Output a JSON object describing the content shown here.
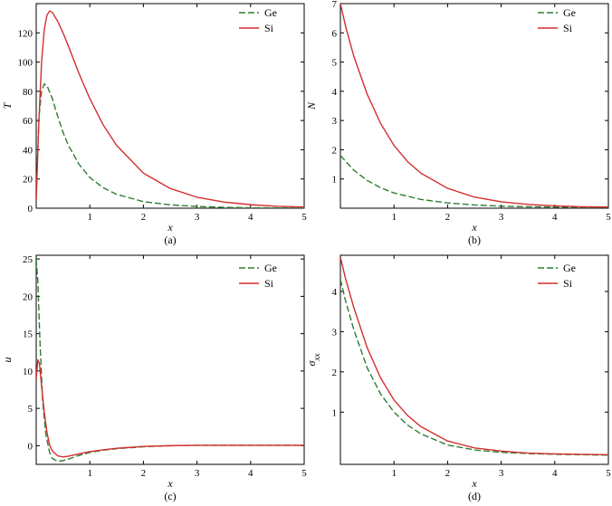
{
  "colors": {
    "Ge": "#2e7d32",
    "Si": "#d32f2f",
    "axis": "#000000"
  },
  "chart_data": [
    {
      "type": "line",
      "panel_label": "(a)",
      "xlabel": "x",
      "ylabel": "T",
      "xlim": [
        0,
        5
      ],
      "ylim": [
        0,
        140
      ],
      "xticks": [
        1,
        2,
        3,
        4,
        5
      ],
      "yticks": [
        0,
        20,
        40,
        60,
        80,
        100,
        120
      ],
      "grid": false,
      "legend_position": "top-right",
      "series": [
        {
          "name": "Ge",
          "style": "dashed",
          "x": [
            0,
            0.05,
            0.1,
            0.15,
            0.2,
            0.3,
            0.4,
            0.5,
            0.6,
            0.8,
            1.0,
            1.25,
            1.5,
            2.0,
            2.5,
            3.0,
            3.5,
            4.0,
            4.5,
            5.0
          ],
          "y": [
            8,
            62,
            80,
            85,
            84,
            75,
            63,
            52,
            43,
            30,
            21,
            14,
            9.5,
            4.5,
            2.3,
            1.2,
            0.6,
            0.3,
            0.2,
            0.1
          ]
        },
        {
          "name": "Si",
          "style": "solid",
          "x": [
            0,
            0.05,
            0.1,
            0.15,
            0.2,
            0.25,
            0.3,
            0.4,
            0.5,
            0.6,
            0.8,
            1.0,
            1.25,
            1.5,
            2.0,
            2.5,
            3.0,
            3.5,
            4.0,
            4.5,
            5.0
          ],
          "y": [
            5,
            60,
            100,
            122,
            132,
            135,
            134,
            128,
            120,
            111,
            92,
            75,
            57,
            43,
            24,
            13.5,
            7.5,
            4.2,
            2.4,
            1.3,
            0.8
          ]
        }
      ]
    },
    {
      "type": "line",
      "panel_label": "(b)",
      "xlabel": "x",
      "ylabel": "N",
      "xlim": [
        0,
        5
      ],
      "ylim": [
        0,
        7
      ],
      "xticks": [
        1,
        2,
        3,
        4,
        5
      ],
      "yticks": [
        1,
        2,
        3,
        4,
        5,
        6,
        7
      ],
      "grid": false,
      "legend_position": "top-right",
      "series": [
        {
          "name": "Ge",
          "style": "dashed",
          "x": [
            0,
            0.1,
            0.25,
            0.5,
            0.75,
            1.0,
            1.5,
            2.0,
            2.5,
            3.0,
            3.5,
            4.0,
            4.5,
            5.0
          ],
          "y": [
            1.8,
            1.6,
            1.3,
            0.95,
            0.7,
            0.52,
            0.3,
            0.18,
            0.11,
            0.07,
            0.05,
            0.04,
            0.03,
            0.03
          ]
        },
        {
          "name": "Si",
          "style": "solid",
          "x": [
            0,
            0.1,
            0.25,
            0.5,
            0.75,
            1.0,
            1.25,
            1.5,
            2.0,
            2.5,
            3.0,
            3.5,
            4.0,
            4.5,
            5.0
          ],
          "y": [
            7.0,
            6.2,
            5.2,
            3.9,
            2.9,
            2.15,
            1.6,
            1.2,
            0.68,
            0.38,
            0.22,
            0.13,
            0.08,
            0.05,
            0.04
          ]
        }
      ]
    },
    {
      "type": "line",
      "panel_label": "(c)",
      "xlabel": "x",
      "ylabel": "u",
      "xlim": [
        0,
        5
      ],
      "ylim": [
        -2.5,
        25.5
      ],
      "xticks": [
        1,
        2,
        3,
        4,
        5
      ],
      "yticks": [
        0,
        5,
        10,
        15,
        20,
        25
      ],
      "grid": false,
      "legend_position": "top-right",
      "series": [
        {
          "name": "Ge",
          "style": "dashed",
          "x": [
            0,
            0.03,
            0.07,
            0.12,
            0.18,
            0.25,
            0.3,
            0.4,
            0.5,
            0.6,
            0.8,
            1.0,
            1.25,
            1.5,
            2.0,
            2.5,
            3.0,
            4.0,
            5.0
          ],
          "y": [
            25,
            22,
            14,
            6,
            1.5,
            -0.9,
            -1.7,
            -2.1,
            -2.0,
            -1.8,
            -1.3,
            -0.9,
            -0.6,
            -0.4,
            -0.15,
            0,
            0.05,
            0.05,
            0.05
          ]
        },
        {
          "name": "Si",
          "style": "solid",
          "x": [
            0,
            0.03,
            0.06,
            0.1,
            0.15,
            0.2,
            0.25,
            0.3,
            0.4,
            0.5,
            0.6,
            0.8,
            1.0,
            1.25,
            1.5,
            2.0,
            2.5,
            3.0,
            4.0,
            5.0
          ],
          "y": [
            9,
            11.5,
            11,
            8,
            4.5,
            1.8,
            0.1,
            -0.7,
            -1.35,
            -1.5,
            -1.4,
            -1.1,
            -0.8,
            -0.55,
            -0.35,
            -0.1,
            0,
            0.05,
            0.05,
            0.05
          ]
        }
      ]
    },
    {
      "type": "line",
      "panel_label": "(d)",
      "xlabel": "x",
      "ylabel": "σxx",
      "ylabel_main": "σ",
      "ylabel_sub": "xx",
      "xlim": [
        0,
        5
      ],
      "ylim": [
        -0.3,
        4.9
      ],
      "xticks": [
        1,
        2,
        3,
        4,
        5
      ],
      "yticks": [
        1,
        2,
        3,
        4
      ],
      "grid": false,
      "legend_position": "top-right",
      "series": [
        {
          "name": "Ge",
          "style": "dashed",
          "x": [
            0,
            0.1,
            0.25,
            0.5,
            0.75,
            1.0,
            1.25,
            1.5,
            2.0,
            2.5,
            3.0,
            3.5,
            4.0,
            4.5,
            5.0
          ],
          "y": [
            4.3,
            3.75,
            3.05,
            2.1,
            1.45,
            1.0,
            0.68,
            0.46,
            0.18,
            0.06,
            0.0,
            -0.03,
            -0.05,
            -0.06,
            -0.07
          ]
        },
        {
          "name": "Si",
          "style": "solid",
          "x": [
            0,
            0.1,
            0.25,
            0.5,
            0.75,
            1.0,
            1.25,
            1.5,
            2.0,
            2.5,
            3.0,
            3.5,
            4.0,
            4.5,
            5.0
          ],
          "y": [
            4.85,
            4.3,
            3.6,
            2.6,
            1.85,
            1.3,
            0.92,
            0.64,
            0.28,
            0.11,
            0.03,
            -0.02,
            -0.04,
            -0.05,
            -0.06
          ]
        }
      ]
    }
  ]
}
